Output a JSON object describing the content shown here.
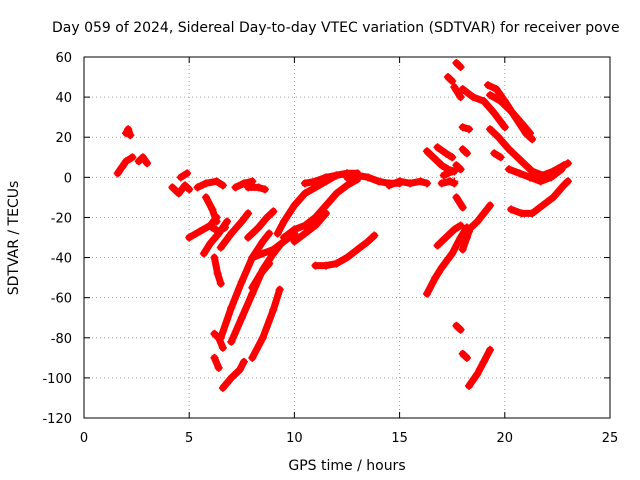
{
  "chart_data": {
    "type": "scatter",
    "title": "Day 059 of 2024, Sidereal Day-to-day VTEC variation (SDTVAR) for receiver pove",
    "xlabel": "GPS time / hours",
    "ylabel": "SDTVAR / TECUs",
    "xlim": [
      0,
      25
    ],
    "ylim": [
      -120,
      60
    ],
    "xticks": [
      "0",
      "5",
      "10",
      "15",
      "20",
      "25"
    ],
    "yticks": [
      "60",
      "40",
      "20",
      "0",
      "-20",
      "-40",
      "-60",
      "-80",
      "-100",
      "-120"
    ],
    "grid": true,
    "marker": "+",
    "color": "#ff0000",
    "series": [
      {
        "values": [
          [
            1.6,
            2
          ],
          [
            1.8,
            5
          ],
          [
            2.0,
            8
          ],
          [
            2.3,
            10
          ]
        ]
      },
      {
        "values": [
          [
            2.0,
            22
          ],
          [
            2.1,
            24
          ],
          [
            2.2,
            21
          ]
        ]
      },
      {
        "values": [
          [
            2.6,
            8
          ],
          [
            2.8,
            10
          ],
          [
            3.0,
            7
          ]
        ]
      },
      {
        "values": [
          [
            4.2,
            -5
          ],
          [
            4.5,
            -8
          ],
          [
            4.8,
            -4
          ],
          [
            5.0,
            -6
          ]
        ]
      },
      {
        "values": [
          [
            4.6,
            0
          ],
          [
            4.9,
            2
          ]
        ]
      },
      {
        "values": [
          [
            5.4,
            -5
          ],
          [
            5.8,
            -3
          ],
          [
            6.3,
            -2
          ],
          [
            6.6,
            -4
          ]
        ]
      },
      {
        "values": [
          [
            5.0,
            -30
          ],
          [
            5.5,
            -27
          ],
          [
            6.0,
            -24
          ],
          [
            6.3,
            -20
          ]
        ]
      },
      {
        "values": [
          [
            5.7,
            -38
          ],
          [
            6.0,
            -33
          ],
          [
            6.4,
            -28
          ],
          [
            6.8,
            -22
          ]
        ]
      },
      {
        "values": [
          [
            5.8,
            -10
          ],
          [
            6.1,
            -16
          ],
          [
            6.3,
            -22
          ]
        ]
      },
      {
        "values": [
          [
            6.1,
            -25
          ],
          [
            6.4,
            -27
          ],
          [
            6.7,
            -25
          ]
        ]
      },
      {
        "values": [
          [
            6.2,
            -40
          ],
          [
            6.35,
            -48
          ],
          [
            6.5,
            -53
          ]
        ]
      },
      {
        "values": [
          [
            6.2,
            -78
          ],
          [
            6.4,
            -80
          ],
          [
            6.6,
            -85
          ]
        ]
      },
      {
        "values": [
          [
            6.2,
            -90
          ],
          [
            6.4,
            -95
          ]
        ]
      },
      {
        "values": [
          [
            6.5,
            -35
          ],
          [
            7.0,
            -28
          ],
          [
            7.5,
            -22
          ],
          [
            7.8,
            -18
          ]
        ]
      },
      {
        "values": [
          [
            6.5,
            -80
          ],
          [
            7.0,
            -65
          ],
          [
            7.5,
            -52
          ],
          [
            8.0,
            -40
          ],
          [
            8.5,
            -32
          ],
          [
            8.8,
            -28
          ]
        ]
      },
      {
        "values": [
          [
            6.6,
            -105
          ],
          [
            7.0,
            -100
          ],
          [
            7.4,
            -96
          ],
          [
            7.6,
            -92
          ]
        ]
      },
      {
        "values": [
          [
            7.0,
            -82
          ],
          [
            7.5,
            -70
          ],
          [
            8.0,
            -58
          ],
          [
            8.5,
            -46
          ],
          [
            9.0,
            -38
          ],
          [
            9.3,
            -34
          ]
        ]
      },
      {
        "values": [
          [
            7.2,
            -5
          ],
          [
            7.6,
            -3
          ],
          [
            8.0,
            -2
          ]
        ]
      },
      {
        "values": [
          [
            7.8,
            -5
          ],
          [
            8.3,
            -5
          ],
          [
            8.6,
            -6
          ]
        ]
      },
      {
        "values": [
          [
            7.8,
            -30
          ],
          [
            8.3,
            -25
          ],
          [
            8.7,
            -20
          ],
          [
            9.0,
            -17
          ]
        ]
      },
      {
        "values": [
          [
            8.0,
            -55
          ],
          [
            8.4,
            -48
          ],
          [
            8.8,
            -43
          ]
        ]
      },
      {
        "values": [
          [
            8.0,
            -90
          ],
          [
            8.5,
            -80
          ],
          [
            9.0,
            -66
          ],
          [
            9.3,
            -56
          ]
        ]
      },
      {
        "values": [
          [
            8.0,
            -40
          ],
          [
            8.5,
            -38
          ],
          [
            9.0,
            -36
          ],
          [
            9.5,
            -32
          ],
          [
            10.0,
            -28
          ]
        ]
      },
      {
        "values": [
          [
            9.2,
            -28
          ],
          [
            9.5,
            -22
          ],
          [
            10.0,
            -14
          ],
          [
            10.5,
            -8
          ],
          [
            11.0,
            -5
          ],
          [
            11.5,
            -2
          ],
          [
            12.0,
            1
          ],
          [
            12.5,
            2
          ],
          [
            13.0,
            2
          ]
        ]
      },
      {
        "values": [
          [
            9.5,
            -30
          ],
          [
            10.0,
            -26
          ],
          [
            10.5,
            -24
          ],
          [
            11.0,
            -20
          ],
          [
            11.5,
            -14
          ],
          [
            12.0,
            -8
          ],
          [
            12.5,
            -4
          ],
          [
            13.0,
            -1
          ]
        ]
      },
      {
        "values": [
          [
            10.0,
            -32
          ],
          [
            10.5,
            -28
          ],
          [
            11.0,
            -24
          ],
          [
            11.5,
            -18
          ]
        ]
      },
      {
        "values": [
          [
            10.5,
            -3
          ],
          [
            11.0,
            -2
          ],
          [
            11.5,
            0
          ],
          [
            12.0,
            1
          ],
          [
            12.5,
            2
          ]
        ]
      },
      {
        "values": [
          [
            11.0,
            -44
          ],
          [
            11.5,
            -44
          ],
          [
            12.0,
            -43
          ],
          [
            12.5,
            -40
          ],
          [
            13.0,
            -36
          ],
          [
            13.5,
            -32
          ],
          [
            13.8,
            -29
          ]
        ]
      },
      {
        "values": [
          [
            12.5,
            0
          ],
          [
            13.0,
            1
          ],
          [
            13.5,
            0
          ],
          [
            14.0,
            -2
          ],
          [
            14.5,
            -3
          ],
          [
            15.0,
            -3
          ]
        ]
      },
      {
        "values": [
          [
            14.5,
            -4
          ],
          [
            15.0,
            -2
          ],
          [
            15.5,
            -3
          ],
          [
            16.0,
            -2
          ],
          [
            16.3,
            -3
          ]
        ]
      },
      {
        "values": [
          [
            16.3,
            13
          ],
          [
            16.7,
            9
          ],
          [
            17.0,
            6
          ],
          [
            17.3,
            4
          ],
          [
            17.6,
            3
          ]
        ]
      },
      {
        "values": [
          [
            16.3,
            -58
          ],
          [
            16.7,
            -50
          ],
          [
            17.0,
            -45
          ],
          [
            17.5,
            -38
          ],
          [
            17.9,
            -30
          ],
          [
            18.2,
            -25
          ]
        ]
      },
      {
        "values": [
          [
            16.8,
            -34
          ],
          [
            17.2,
            -30
          ],
          [
            17.6,
            -26
          ],
          [
            17.9,
            -24
          ]
        ]
      },
      {
        "values": [
          [
            17.0,
            -3
          ],
          [
            17.4,
            -2
          ],
          [
            17.6,
            -3
          ]
        ]
      },
      {
        "values": [
          [
            17.1,
            1
          ],
          [
            17.5,
            3
          ]
        ]
      },
      {
        "values": [
          [
            16.8,
            15
          ],
          [
            17.2,
            12
          ],
          [
            17.5,
            10
          ]
        ]
      },
      {
        "values": [
          [
            17.7,
            57
          ],
          [
            17.9,
            55
          ]
        ]
      },
      {
        "values": [
          [
            17.3,
            50
          ],
          [
            17.5,
            48
          ]
        ]
      },
      {
        "values": [
          [
            17.6,
            45
          ],
          [
            17.9,
            40
          ]
        ]
      },
      {
        "values": [
          [
            18.0,
            44
          ],
          [
            18.5,
            40
          ],
          [
            19.0,
            38
          ],
          [
            19.5,
            32
          ],
          [
            20.0,
            25
          ]
        ]
      },
      {
        "values": [
          [
            18.0,
            25
          ],
          [
            18.3,
            24
          ]
        ]
      },
      {
        "values": [
          [
            18.0,
            14
          ],
          [
            18.2,
            12
          ]
        ]
      },
      {
        "values": [
          [
            17.7,
            6
          ],
          [
            17.9,
            4
          ]
        ]
      },
      {
        "values": [
          [
            17.6,
            -2
          ]
        ]
      },
      {
        "values": [
          [
            17.7,
            -10
          ],
          [
            18.0,
            -15
          ]
        ]
      },
      {
        "values": [
          [
            17.7,
            -74
          ],
          [
            17.9,
            -76
          ]
        ]
      },
      {
        "values": [
          [
            18.0,
            -88
          ],
          [
            18.2,
            -90
          ]
        ]
      },
      {
        "values": [
          [
            18.3,
            -104
          ],
          [
            18.7,
            -98
          ],
          [
            19.0,
            -92
          ],
          [
            19.3,
            -86
          ]
        ]
      },
      {
        "values": [
          [
            18.0,
            -36
          ],
          [
            18.2,
            -30
          ],
          [
            18.3,
            -27
          ]
        ]
      },
      {
        "values": [
          [
            18.4,
            -25
          ],
          [
            18.7,
            -22
          ],
          [
            19.0,
            -18
          ],
          [
            19.3,
            -14
          ]
        ]
      },
      {
        "values": [
          [
            19.2,
            46
          ],
          [
            19.6,
            44
          ],
          [
            20.0,
            38
          ],
          [
            20.5,
            30
          ],
          [
            21.0,
            22
          ],
          [
            21.3,
            19
          ]
        ]
      },
      {
        "values": [
          [
            19.3,
            41
          ],
          [
            19.8,
            38
          ],
          [
            20.3,
            33
          ],
          [
            20.8,
            27
          ],
          [
            21.2,
            22
          ]
        ]
      },
      {
        "values": [
          [
            19.3,
            24
          ],
          [
            19.7,
            20
          ],
          [
            20.2,
            14
          ],
          [
            20.8,
            8
          ],
          [
            21.3,
            3
          ],
          [
            21.8,
            1
          ],
          [
            22.3,
            3
          ],
          [
            22.8,
            6
          ]
        ]
      },
      {
        "values": [
          [
            19.5,
            12
          ],
          [
            19.8,
            10
          ]
        ]
      },
      {
        "values": [
          [
            20.2,
            4
          ],
          [
            20.7,
            2
          ],
          [
            21.2,
            0
          ],
          [
            21.7,
            0
          ],
          [
            22.2,
            2
          ],
          [
            22.7,
            5
          ],
          [
            23.0,
            7
          ]
        ]
      },
      {
        "values": [
          [
            20.3,
            -16
          ],
          [
            20.8,
            -18
          ],
          [
            21.3,
            -18
          ],
          [
            21.8,
            -14
          ],
          [
            22.3,
            -10
          ],
          [
            22.8,
            -4
          ],
          [
            23.0,
            -2
          ]
        ]
      },
      {
        "values": [
          [
            21.2,
            0
          ],
          [
            21.7,
            -2
          ],
          [
            22.2,
            0
          ],
          [
            22.7,
            4
          ]
        ]
      }
    ]
  }
}
